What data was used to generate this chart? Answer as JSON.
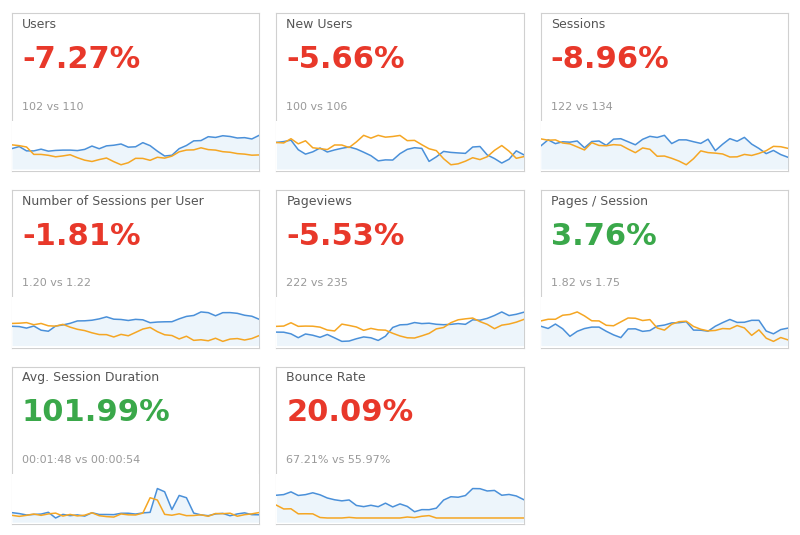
{
  "panels": [
    {
      "title": "Users",
      "pct": "-7.27%",
      "pct_color": "#e8382a",
      "subtitle": "102 vs 110",
      "row": 0,
      "col": 0
    },
    {
      "title": "New Users",
      "pct": "-5.66%",
      "pct_color": "#e8382a",
      "subtitle": "100 vs 106",
      "row": 0,
      "col": 1
    },
    {
      "title": "Sessions",
      "pct": "-8.96%",
      "pct_color": "#e8382a",
      "subtitle": "122 vs 134",
      "row": 0,
      "col": 2
    },
    {
      "title": "Number of Sessions per User",
      "pct": "-1.81%",
      "pct_color": "#e8382a",
      "subtitle": "1.20 vs 1.22",
      "row": 1,
      "col": 0
    },
    {
      "title": "Pageviews",
      "pct": "-5.53%",
      "pct_color": "#e8382a",
      "subtitle": "222 vs 235",
      "row": 1,
      "col": 1
    },
    {
      "title": "Pages / Session",
      "pct": "3.76%",
      "pct_color": "#3aa84a",
      "subtitle": "1.82 vs 1.75",
      "row": 1,
      "col": 2
    },
    {
      "title": "Avg. Session Duration",
      "pct": "101.99%",
      "pct_color": "#3aa84a",
      "subtitle": "00:01:48 vs 00:00:54",
      "row": 2,
      "col": 0
    },
    {
      "title": "Bounce Rate",
      "pct": "20.09%",
      "pct_color": "#e8382a",
      "subtitle": "67.21% vs 55.97%",
      "row": 2,
      "col": 1
    }
  ],
  "blue_color": "#4a90d9",
  "orange_color": "#f5a623",
  "fill_color": "#c5dff5",
  "bg_color": "#ffffff",
  "border_color": "#d0d0d0",
  "title_color": "#555555",
  "subtitle_color": "#999999",
  "title_fontsize": 9,
  "pct_fontsize": 22,
  "subtitle_fontsize": 8
}
